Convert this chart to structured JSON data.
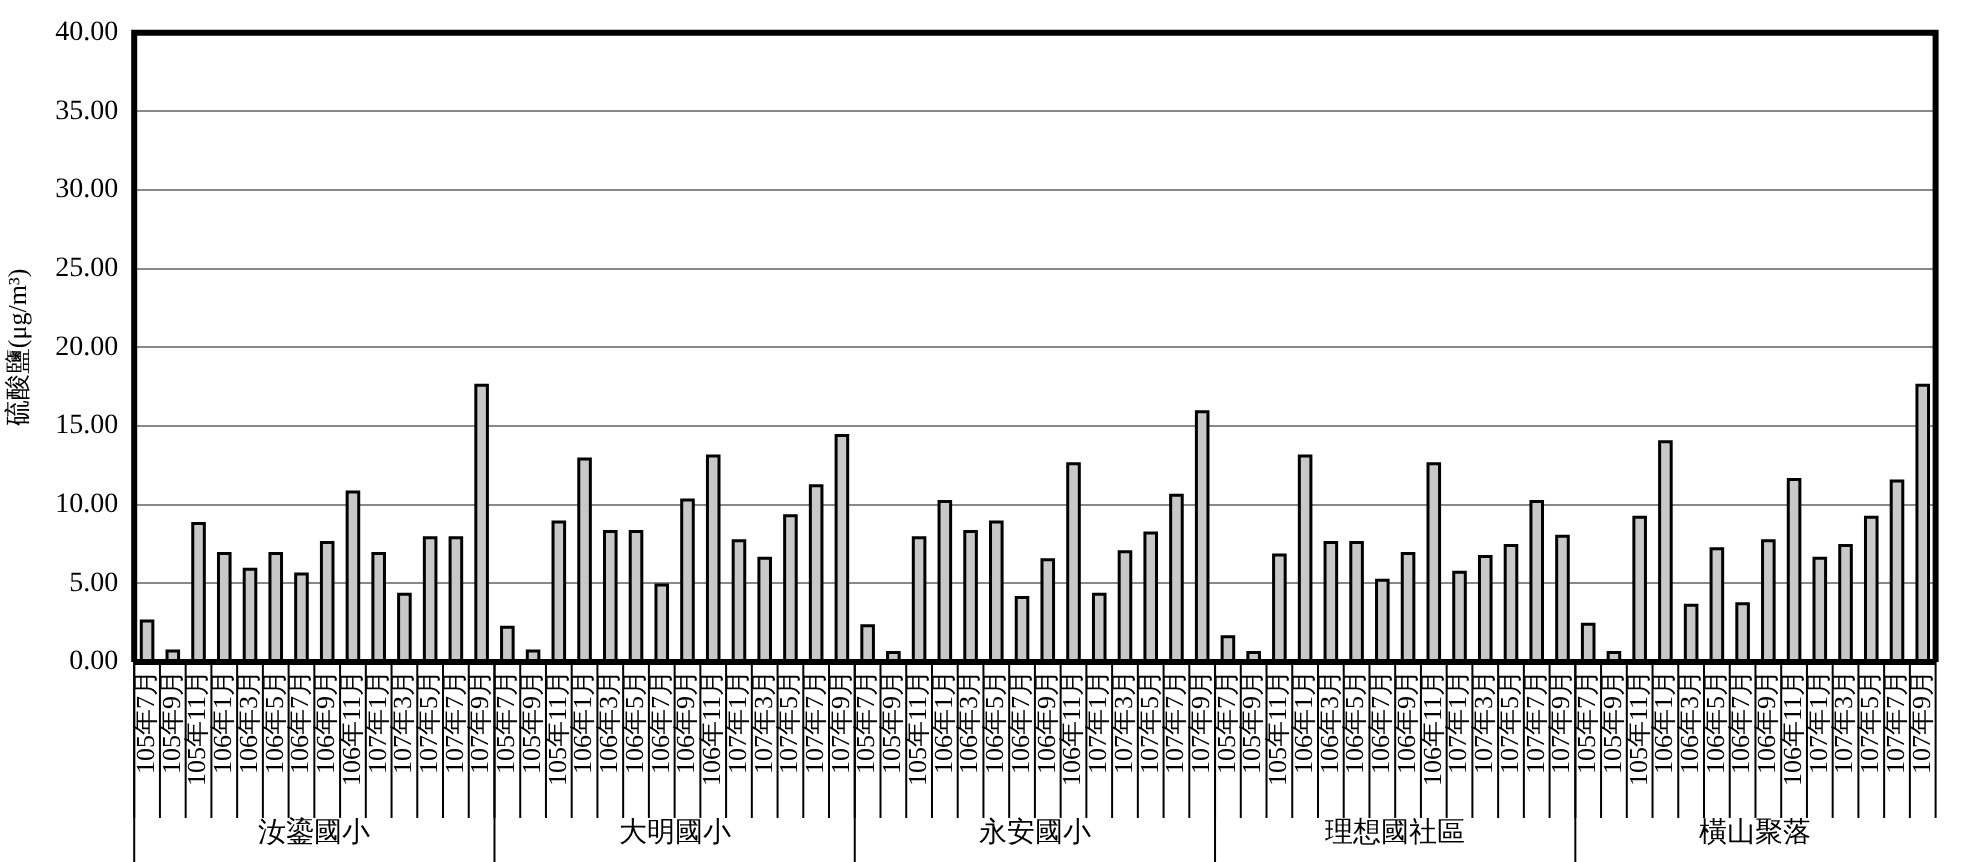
{
  "chart_data": {
    "type": "bar",
    "ylabel": "硫酸鹽(μg/m³)",
    "categories": [
      "105年7月",
      "105年9月",
      "105年11月",
      "106年1月",
      "106年3月",
      "106年5月",
      "106年7月",
      "106年9月",
      "106年11月",
      "107年1月",
      "107年3月",
      "107年5月",
      "107年7月",
      "107年9月",
      "105年7月",
      "105年9月",
      "105年11月",
      "106年1月",
      "106年3月",
      "106年5月",
      "106年7月",
      "106年9月",
      "106年11月",
      "107年1月",
      "107年3月",
      "107年5月",
      "107年7月",
      "107年9月",
      "105年7月",
      "105年9月",
      "105年11月",
      "106年1月",
      "106年3月",
      "106年5月",
      "106年7月",
      "106年9月",
      "106年11月",
      "107年1月",
      "107年3月",
      "107年5月",
      "107年7月",
      "107年9月",
      "105年7月",
      "105年9月",
      "105年11月",
      "106年1月",
      "106年3月",
      "106年5月",
      "106年7月",
      "106年9月",
      "106年11月",
      "107年1月",
      "107年3月",
      "107年5月",
      "107年7月",
      "107年9月",
      "105年7月",
      "105年9月",
      "105年11月",
      "106年1月",
      "106年3月",
      "106年5月",
      "106年7月",
      "106年9月",
      "106年11月",
      "107年1月",
      "107年3月",
      "107年5月",
      "107年7月",
      "107年9月"
    ],
    "values": [
      2.6,
      0.7,
      8.8,
      6.9,
      5.9,
      6.9,
      5.6,
      7.6,
      10.8,
      6.9,
      4.3,
      7.9,
      7.9,
      17.6,
      2.2,
      0.7,
      8.9,
      12.9,
      8.3,
      8.3,
      4.9,
      10.3,
      13.1,
      7.7,
      6.6,
      9.3,
      11.2,
      14.4,
      2.3,
      0.6,
      7.9,
      10.2,
      8.3,
      8.9,
      4.1,
      6.5,
      12.6,
      4.3,
      7.0,
      8.2,
      10.6,
      15.9,
      1.6,
      0.6,
      6.8,
      13.1,
      7.6,
      7.6,
      5.2,
      6.9,
      12.6,
      5.7,
      6.7,
      7.4,
      10.2,
      8.0,
      2.4,
      0.6,
      9.2,
      14.0,
      3.6,
      7.2,
      3.7,
      7.7,
      11.6,
      6.6,
      7.4,
      9.2,
      11.5,
      17.6
    ],
    "color": "#c8c8c8",
    "annotations": [
      "汝鎏國小",
      "大明國小",
      "永安國小",
      "理想國社區",
      "橫山聚落"
    ],
    "ylim": [
      0,
      40
    ],
    "yticks": [
      {
        "value": 0,
        "label": "0.00"
      },
      {
        "value": 5,
        "label": "5.00"
      },
      {
        "value": 10,
        "label": "10.00"
      },
      {
        "value": 15,
        "label": "15.00"
      },
      {
        "value": 20,
        "label": "20.00"
      },
      {
        "value": 25,
        "label": "25.00"
      },
      {
        "value": 30,
        "label": "30.00"
      },
      {
        "value": 35,
        "label": "35.00"
      },
      {
        "value": 40,
        "label": "40.00"
      }
    ],
    "grid": "y",
    "legend": false
  }
}
